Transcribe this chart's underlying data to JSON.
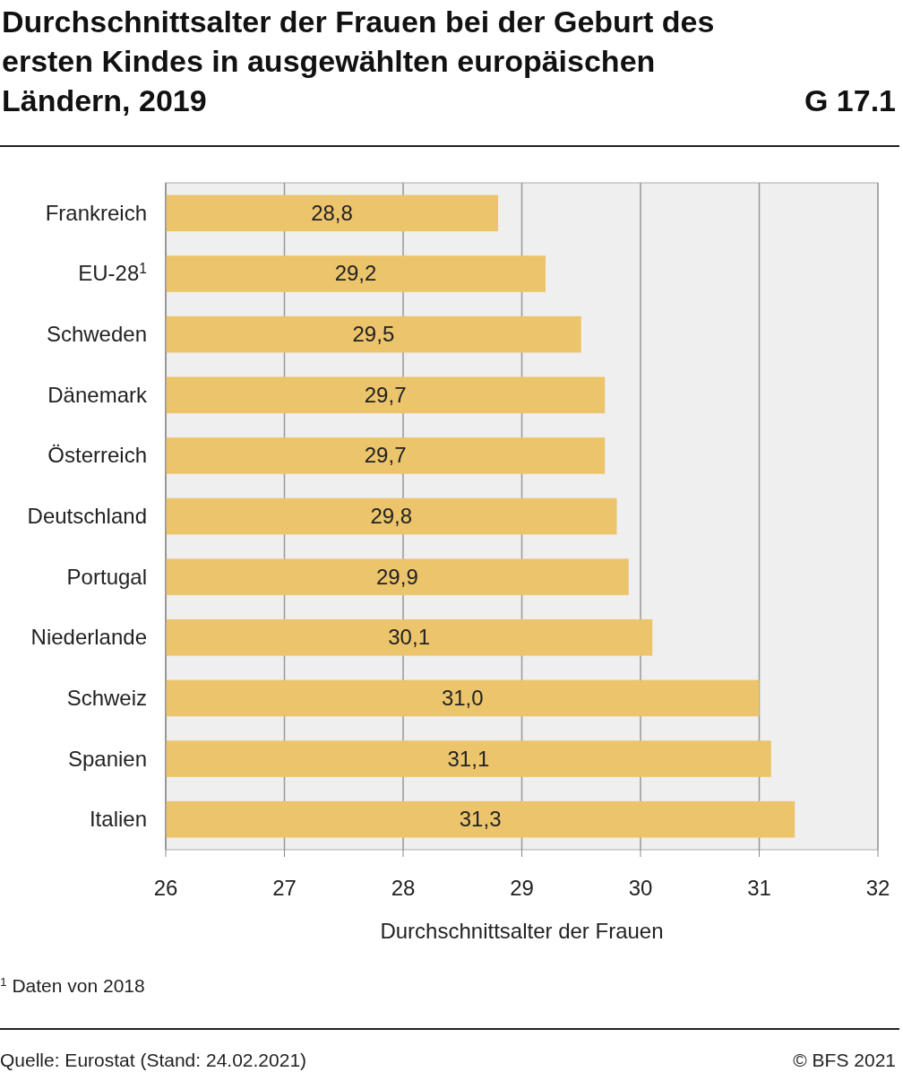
{
  "chart_data": {
    "type": "bar",
    "orientation": "horizontal",
    "title": "Durchschnittsalter der Frauen bei der Geburt des ersten Kindes in ausgewählten europäischen Ländern, 2019",
    "xlabel": "Durchschnittsalter der Frauen",
    "categories": [
      "Frankreich",
      "EU-28$^{1}$",
      "Schweden",
      "Dänemark",
      "Österreich",
      "Deutschland",
      "Portugal",
      "Niederlande",
      "Schweiz",
      "Spanien",
      "Italien"
    ],
    "values": [
      28.8,
      29.2,
      29.5,
      29.7,
      29.7,
      29.8,
      29.9,
      30.1,
      31.0,
      31.1,
      31.3
    ],
    "value_labels": [
      "28,8",
      "29,2",
      "29,5",
      "29,7",
      "29,7",
      "29,8",
      "29,9",
      "30,1",
      "31,0",
      "31,1",
      "31,3"
    ],
    "color": "#ecc46c",
    "xlim": [
      26,
      32
    ],
    "xticks": [
      26,
      27,
      28,
      29,
      30,
      31,
      32
    ],
    "grid": "x",
    "annotations": [
      "G 17.1",
      "$^{1}$   Daten von 2018",
      "Quelle: Eurostat (Stand: 24.02.2021)",
      "© BFS 2021"
    ]
  }
}
